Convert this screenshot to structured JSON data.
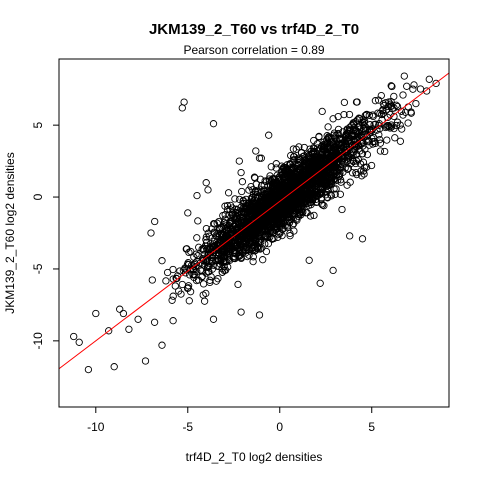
{
  "chart_data": {
    "type": "scatter",
    "title": "JKM139_2_T60 vs trf4D_2_T0",
    "subtitle": "Pearson correlation =  0.89",
    "xlabel": "trf4D_2_T0 log2 densities",
    "ylabel": "JKM139_2_T60 log2 densities",
    "xlim": [
      -12,
      9.2
    ],
    "ylim": [
      -14.6,
      9.6
    ],
    "xticks": [
      -10,
      -5,
      0,
      5
    ],
    "yticks": [
      -10,
      -5,
      0,
      5
    ],
    "xtick_labels": [
      "-10",
      "-5",
      "0",
      "5"
    ],
    "ytick_labels": [
      "-10",
      "-5",
      "0",
      "5"
    ],
    "grid": false,
    "legend": "none",
    "fit_line": {
      "slope": 0.97,
      "intercept": -0.3,
      "color": "#ff0000"
    },
    "marker": {
      "shape": "open-circle",
      "color": "#000000"
    },
    "series": [
      {
        "points": [
          [
            -5.2,
            6.6
          ],
          [
            -5.3,
            6.2
          ],
          [
            -3.6,
            5.1
          ],
          [
            8.5,
            7.9
          ],
          [
            7.3,
            7.8
          ],
          [
            6.9,
            7.7
          ],
          [
            -10.9,
            -10.1
          ],
          [
            -10.4,
            -12.0
          ],
          [
            -9.3,
            -9.3
          ],
          [
            -9.0,
            -11.8
          ],
          [
            -10.0,
            -8.1
          ],
          [
            -11.2,
            -9.7
          ],
          [
            -8.7,
            -7.8
          ],
          [
            -8.5,
            -8.1
          ],
          [
            -7.3,
            -11.4
          ],
          [
            -7.7,
            -8.5
          ],
          [
            -8.2,
            -9.2
          ],
          [
            -6.4,
            -10.3
          ],
          [
            -5.8,
            -8.6
          ],
          [
            -3.6,
            -8.5
          ],
          [
            -2.1,
            -8.0
          ],
          [
            -1.1,
            -8.2
          ],
          [
            2.2,
            -6.0
          ],
          [
            3.8,
            -2.7
          ],
          [
            4.5,
            -2.9
          ],
          [
            2.9,
            -5.1
          ],
          [
            1.6,
            -4.4
          ],
          [
            -7.0,
            -2.5
          ],
          [
            -6.8,
            -1.7
          ],
          [
            -5.0,
            -1.1
          ],
          [
            -4.5,
            0.1
          ],
          [
            -3.9,
            0.5
          ],
          [
            -4.0,
            1.0
          ],
          [
            -2.2,
            2.5
          ],
          [
            -1.3,
            3.2
          ],
          [
            -1.1,
            2.7
          ],
          [
            -0.6,
            4.3
          ],
          [
            -2.1,
            1.7
          ],
          [
            4.9,
            4.6
          ],
          [
            5.2,
            6.7
          ],
          [
            5.6,
            6.0
          ],
          [
            6.2,
            7.0
          ],
          [
            5.9,
            6.3
          ],
          [
            6.4,
            6.3
          ],
          [
            7.4,
            6.5
          ],
          [
            6.7,
            5.7
          ],
          [
            6.0,
            4.8
          ],
          [
            5.8,
            4.9
          ],
          [
            6.7,
            7.1
          ],
          [
            4.5,
            5.2
          ]
        ],
        "cloud": {
          "count": 2600,
          "x_mean": 0.3,
          "x_sd": 2.3,
          "y_slope": 0.97,
          "y_intercept": -0.3,
          "y_residual_sd": 1.05,
          "seed": 139
        }
      }
    ]
  }
}
